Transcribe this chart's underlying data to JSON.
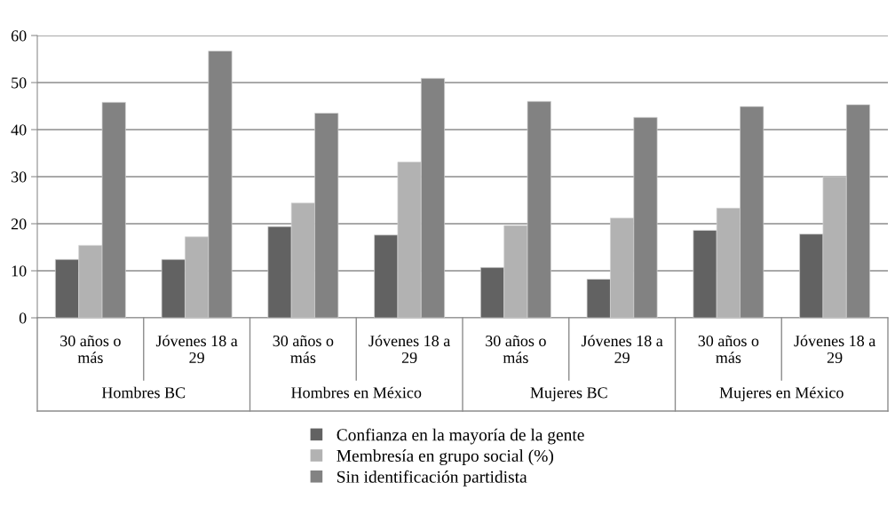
{
  "chart_data": {
    "type": "bar",
    "categories": [
      "30 años o\nmás",
      "Jóvenes 18 a\n29",
      "30 años o\nmás",
      "Jóvenes 18 a\n29",
      "30 años o\nmás",
      "Jóvenes 18 a\n29",
      "30 años o\nmás",
      "Jóvenes 18 a\n29"
    ],
    "annotations": [
      "Hombres BC",
      "Hombres en México",
      "Mujeres BC",
      "Mujeres en México"
    ],
    "series": [
      {
        "name": "Confianza en la mayoría de la gente",
        "color": "#626262",
        "values": [
          12.4,
          12.4,
          19.4,
          17.6,
          10.7,
          8.2,
          18.6,
          17.8
        ]
      },
      {
        "name": "Membresía en grupo social (%)",
        "color": "#b2b2b2",
        "values": [
          15.4,
          17.2,
          24.4,
          33.1,
          19.6,
          21.2,
          23.3,
          30.0
        ]
      },
      {
        "name": "Sin identificación partidista",
        "color": "#828282",
        "values": [
          45.8,
          56.7,
          43.5,
          50.9,
          46.0,
          42.6,
          44.9,
          45.3
        ]
      }
    ],
    "ylim": [
      0,
      60
    ],
    "yticks": [
      0,
      10,
      20,
      30,
      40,
      50,
      60
    ],
    "grid": "y",
    "legend": "bottom"
  }
}
